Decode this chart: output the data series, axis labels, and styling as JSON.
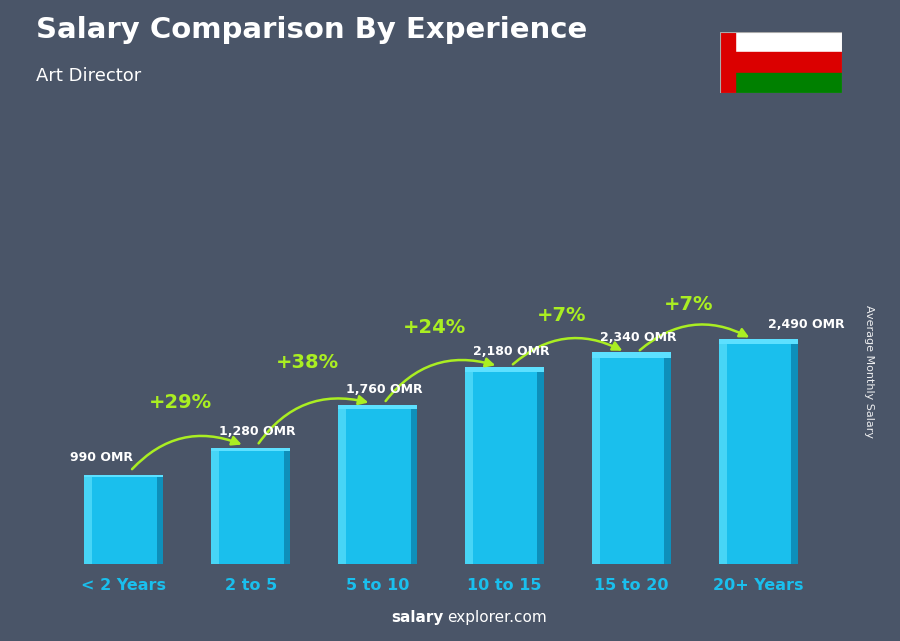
{
  "title": "Salary Comparison By Experience",
  "subtitle": "Art Director",
  "categories": [
    "< 2 Years",
    "2 to 5",
    "5 to 10",
    "10 to 15",
    "15 to 20",
    "20+ Years"
  ],
  "values": [
    990,
    1280,
    1760,
    2180,
    2340,
    2490
  ],
  "bar_main_color": "#1abfed",
  "bar_left_color": "#4dd8f8",
  "bar_right_color": "#0d8ab5",
  "bar_top_color": "#5de0ff",
  "pct_labels": [
    "+29%",
    "+38%",
    "+24%",
    "+7%",
    "+7%"
  ],
  "value_labels": [
    "990 OMR",
    "1,280 OMR",
    "1,760 OMR",
    "2,180 OMR",
    "2,340 OMR",
    "2,490 OMR"
  ],
  "ylabel": "Average Monthly Salary",
  "footer_normal": "explorer.com",
  "footer_bold": "salary",
  "bg_color": "#4a5568",
  "title_color": "#ffffff",
  "subtitle_color": "#ffffff",
  "pct_color": "#aaee22",
  "value_color": "#ffffff",
  "xlabel_color": "#1abfed",
  "flag_white": "#ffffff",
  "flag_red": "#db0000",
  "flag_green": "#008000"
}
